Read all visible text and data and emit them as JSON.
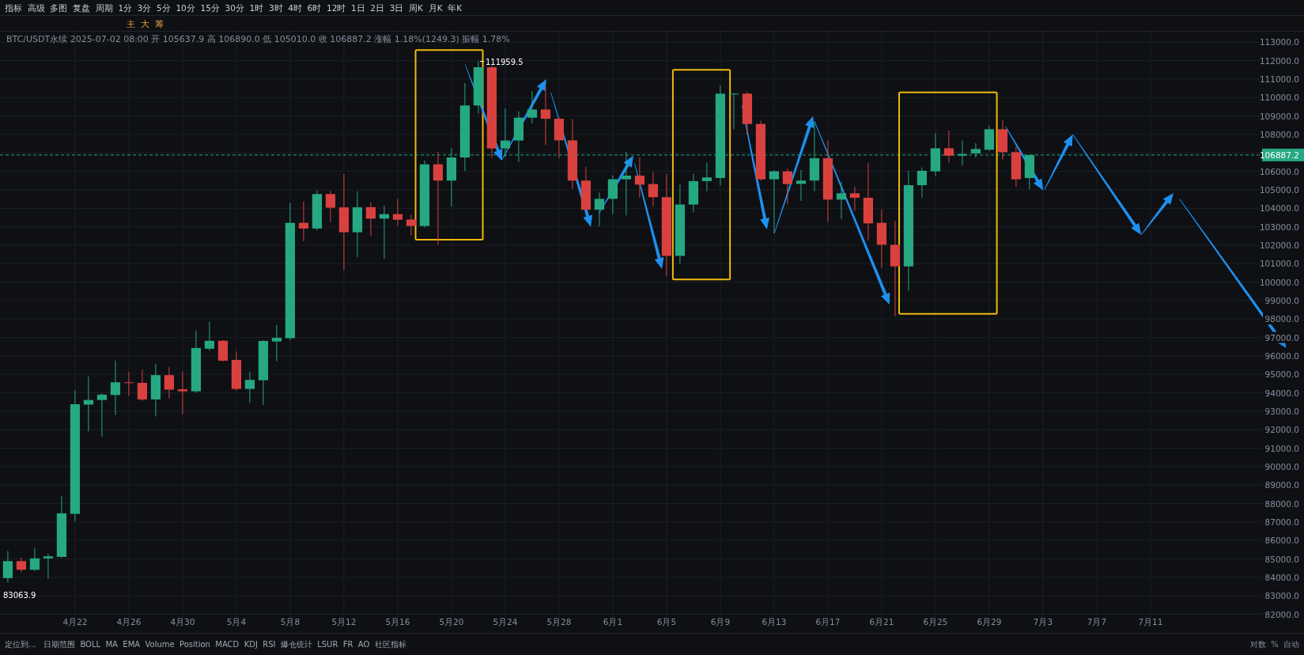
{
  "chart_data": {
    "type": "candlestick",
    "title": "BTC/USDT永续 2025-07-02 08:00 开 105637.9 高 106890.0 低 105010.0 收 106887.2 涨幅 1.18%(1249.3) 振幅 1.78%",
    "x": [
      "2025-04-17",
      "2025-04-18",
      "2025-04-19",
      "2025-04-20",
      "2025-04-21",
      "2025-04-22",
      "2025-04-23",
      "2025-04-24",
      "2025-04-25",
      "2025-04-26",
      "2025-04-27",
      "2025-04-28",
      "2025-04-29",
      "2025-04-30",
      "2025-05-01",
      "2025-05-02",
      "2025-05-03",
      "2025-05-04",
      "2025-05-05",
      "2025-05-06",
      "2025-05-07",
      "2025-05-08",
      "2025-05-09",
      "2025-05-10",
      "2025-05-11",
      "2025-05-12",
      "2025-05-13",
      "2025-05-14",
      "2025-05-15",
      "2025-05-16",
      "2025-05-17",
      "2025-05-18",
      "2025-05-19",
      "2025-05-20",
      "2025-05-21",
      "2025-05-22",
      "2025-05-23",
      "2025-05-24",
      "2025-05-25",
      "2025-05-26",
      "2025-05-27",
      "2025-05-28",
      "2025-05-29",
      "2025-05-30",
      "2025-05-31",
      "2025-06-01",
      "2025-06-02",
      "2025-06-03",
      "2025-06-04",
      "2025-06-05",
      "2025-06-06",
      "2025-06-07",
      "2025-06-08",
      "2025-06-09",
      "2025-06-10",
      "2025-06-11",
      "2025-06-12",
      "2025-06-13",
      "2025-06-14",
      "2025-06-15",
      "2025-06-16",
      "2025-06-17",
      "2025-06-18",
      "2025-06-19",
      "2025-06-20",
      "2025-06-21",
      "2025-06-22",
      "2025-06-23",
      "2025-06-24",
      "2025-06-25",
      "2025-06-26",
      "2025-06-27",
      "2025-06-28",
      "2025-06-29",
      "2025-06-30",
      "2025-07-01",
      "2025-07-02"
    ],
    "ohlc": [
      [
        83960,
        85430,
        83720,
        84880
      ],
      [
        84880,
        85070,
        84270,
        84410
      ],
      [
        84410,
        85590,
        84330,
        85030
      ],
      [
        85030,
        85280,
        83920,
        85140
      ],
      [
        85110,
        88400,
        85050,
        87470
      ],
      [
        87440,
        94130,
        87020,
        93380
      ],
      [
        93360,
        94890,
        91910,
        93610
      ],
      [
        93610,
        93980,
        91620,
        93900
      ],
      [
        93880,
        95750,
        92800,
        94570
      ],
      [
        94570,
        95140,
        93820,
        94530
      ],
      [
        94540,
        95260,
        93550,
        93640
      ],
      [
        93640,
        95570,
        92720,
        94960
      ],
      [
        94960,
        95400,
        93690,
        94170
      ],
      [
        94190,
        95170,
        92840,
        94080
      ],
      [
        94080,
        97370,
        94000,
        96430
      ],
      [
        96390,
        97850,
        96290,
        96820
      ],
      [
        96820,
        96850,
        95690,
        95740
      ],
      [
        95780,
        96240,
        94130,
        94210
      ],
      [
        94210,
        95150,
        93440,
        94700
      ],
      [
        94680,
        96850,
        93330,
        96810
      ],
      [
        96780,
        97680,
        95710,
        96980
      ],
      [
        96960,
        104280,
        96850,
        103210
      ],
      [
        103210,
        104360,
        102210,
        102900
      ],
      [
        102900,
        104970,
        102790,
        104770
      ],
      [
        104770,
        104940,
        103250,
        104030
      ],
      [
        104050,
        105860,
        100650,
        102700
      ],
      [
        102700,
        104920,
        101370,
        104050
      ],
      [
        104060,
        104310,
        102520,
        103440
      ],
      [
        103440,
        104140,
        101260,
        103680
      ],
      [
        103680,
        104510,
        103040,
        103380
      ],
      [
        103390,
        103650,
        102520,
        103040
      ],
      [
        103040,
        106590,
        102950,
        106380
      ],
      [
        106380,
        107070,
        102020,
        105500
      ],
      [
        105500,
        107250,
        104100,
        106750
      ],
      [
        106750,
        110780,
        106020,
        109570
      ],
      [
        109570,
        111959.5,
        109140,
        111640
      ],
      [
        111640,
        111740,
        106740,
        107240
      ],
      [
        107240,
        109400,
        106780,
        107670
      ],
      [
        107670,
        109250,
        106500,
        108910
      ],
      [
        108910,
        110350,
        108600,
        109350
      ],
      [
        109350,
        110570,
        107430,
        108850
      ],
      [
        108850,
        108900,
        106710,
        107680
      ],
      [
        107680,
        108850,
        105040,
        105500
      ],
      [
        105500,
        106240,
        103880,
        103920
      ],
      [
        103920,
        104850,
        103020,
        104510
      ],
      [
        104510,
        105780,
        103680,
        105570
      ],
      [
        105570,
        107070,
        103610,
        105770
      ],
      [
        105770,
        106750,
        104570,
        105280
      ],
      [
        105310,
        105950,
        104110,
        104600
      ],
      [
        104600,
        105850,
        100310,
        101420
      ],
      [
        101420,
        105280,
        100990,
        104200
      ],
      [
        104200,
        105850,
        103780,
        105470
      ],
      [
        105470,
        106470,
        104920,
        105670
      ],
      [
        105640,
        110640,
        105240,
        110210
      ],
      [
        110180,
        110240,
        108280,
        110210
      ],
      [
        110210,
        110310,
        108000,
        108570
      ],
      [
        108570,
        108740,
        105500,
        105570
      ],
      [
        105570,
        106070,
        102640,
        106000
      ],
      [
        106000,
        106140,
        104210,
        105310
      ],
      [
        105320,
        106070,
        104400,
        105500
      ],
      [
        105500,
        108710,
        104930,
        106710
      ],
      [
        106710,
        107680,
        103280,
        104470
      ],
      [
        104470,
        105430,
        103420,
        104810
      ],
      [
        104810,
        105170,
        103850,
        104570
      ],
      [
        104570,
        106450,
        102250,
        103180
      ],
      [
        103210,
        103930,
        100780,
        102020
      ],
      [
        102020,
        103320,
        98140,
        100850
      ],
      [
        100850,
        106030,
        99540,
        105250
      ],
      [
        105250,
        106210,
        104570,
        106030
      ],
      [
        106000,
        108070,
        105740,
        107250
      ],
      [
        107250,
        108210,
        106470,
        106850
      ],
      [
        106850,
        107670,
        106310,
        106940
      ],
      [
        106970,
        107530,
        106740,
        107210
      ],
      [
        107170,
        108470,
        107110,
        108280
      ],
      [
        108280,
        108780,
        106640,
        107040
      ],
      [
        107040,
        107350,
        105170,
        105570
      ],
      [
        105637.9,
        106890.0,
        105010.0,
        106887.2
      ]
    ],
    "colors": [
      "#26a882",
      "#d9413f",
      "#26a882",
      "#26a882",
      "#26a882",
      "#26a882",
      "#26a882",
      "#26a882",
      "#26a882",
      "#d9413f",
      "#d9413f",
      "#26a882",
      "#d9413f",
      "#d9413f",
      "#26a882",
      "#26a882",
      "#d9413f",
      "#d9413f",
      "#26a882",
      "#26a882",
      "#26a882",
      "#26a882",
      "#d9413f",
      "#26a882",
      "#d9413f",
      "#d9413f",
      "#26a882",
      "#d9413f",
      "#26a882",
      "#d9413f",
      "#d9413f",
      "#26a882",
      "#d9413f",
      "#26a882",
      "#26a882",
      "#26a882",
      "#d9413f",
      "#26a882",
      "#26a882",
      "#26a882",
      "#d9413f",
      "#d9413f",
      "#d9413f",
      "#d9413f",
      "#26a882",
      "#26a882",
      "#26a882",
      "#d9413f",
      "#d9413f",
      "#d9413f",
      "#26a882",
      "#26a882",
      "#26a882",
      "#26a882",
      "#26a882",
      "#d9413f",
      "#d9413f",
      "#26a882",
      "#d9413f",
      "#26a882",
      "#26a882",
      "#d9413f",
      "#26a882",
      "#d9413f",
      "#d9413f",
      "#d9413f",
      "#d9413f",
      "#26a882",
      "#26a882",
      "#26a882",
      "#d9413f",
      "#26a882",
      "#26a882",
      "#26a882",
      "#d9413f",
      "#d9413f",
      "#26a882"
    ],
    "xlim": [
      "2025-04-16T10:00",
      "2025-07-22T10:00"
    ],
    "xticks": [
      {
        "value": "2025-04-22",
        "label": "4月22"
      },
      {
        "value": "2025-04-26",
        "label": "4月26"
      },
      {
        "value": "2025-04-30",
        "label": "4月30"
      },
      {
        "value": "2025-05-04",
        "label": "5月4"
      },
      {
        "value": "2025-05-08",
        "label": "5月8"
      },
      {
        "value": "2025-05-12",
        "label": "5月12"
      },
      {
        "value": "2025-05-16",
        "label": "5月16"
      },
      {
        "value": "2025-05-20",
        "label": "5月20"
      },
      {
        "value": "2025-05-24",
        "label": "5月24"
      },
      {
        "value": "2025-05-28",
        "label": "5月28"
      },
      {
        "value": "2025-06-01",
        "label": "6月1"
      },
      {
        "value": "2025-06-05",
        "label": "6月5"
      },
      {
        "value": "2025-06-09",
        "label": "6月9"
      },
      {
        "value": "2025-06-13",
        "label": "6月13"
      },
      {
        "value": "2025-06-17",
        "label": "6月17"
      },
      {
        "value": "2025-06-21",
        "label": "6月21"
      },
      {
        "value": "2025-06-25",
        "label": "6月25"
      },
      {
        "value": "2025-06-29",
        "label": "6月29"
      },
      {
        "value": "2025-07-03",
        "label": "7月3"
      },
      {
        "value": "2025-07-07",
        "label": "7月7"
      },
      {
        "value": "2025-07-11",
        "label": "7月11"
      }
    ],
    "ylim": [
      81850,
      113570
    ],
    "yticks": [
      {
        "value": 82000,
        "label": "82000.0"
      },
      {
        "value": 83000,
        "label": "83000.0"
      },
      {
        "value": 84000,
        "label": "84000.0"
      },
      {
        "value": 85000,
        "label": "85000.0"
      },
      {
        "value": 86000,
        "label": "86000.0"
      },
      {
        "value": 87000,
        "label": "87000.0"
      },
      {
        "value": 88000,
        "label": "88000.0"
      },
      {
        "value": 89000,
        "label": "89000.0"
      },
      {
        "value": 90000,
        "label": "90000.0"
      },
      {
        "value": 91000,
        "label": "91000.0"
      },
      {
        "value": 92000,
        "label": "92000.0"
      },
      {
        "value": 93000,
        "label": "93000.0"
      },
      {
        "value": 94000,
        "label": "94000.0"
      },
      {
        "value": 95000,
        "label": "95000.0"
      },
      {
        "value": 96000,
        "label": "96000.0"
      },
      {
        "value": 97000,
        "label": "97000.0"
      },
      {
        "value": 98000,
        "label": "98000.0"
      },
      {
        "value": 99000,
        "label": "99000.0"
      },
      {
        "value": 100000,
        "label": "100000.0"
      },
      {
        "value": 101000,
        "label": "101000.0"
      },
      {
        "value": 102000,
        "label": "102000.0"
      },
      {
        "value": 103000,
        "label": "103000.0"
      },
      {
        "value": 104000,
        "label": "104000.0"
      },
      {
        "value": 105000,
        "label": "105000.0"
      },
      {
        "value": 106000,
        "label": "106000.0"
      },
      {
        "value": 107000,
        "label": null
      },
      {
        "value": 108000,
        "label": "108000.0"
      },
      {
        "value": 109000,
        "label": "109000.0"
      },
      {
        "value": 110000,
        "label": "110000.0"
      },
      {
        "value": 111000,
        "label": "111000.0"
      },
      {
        "value": 112000,
        "label": "112000.0"
      },
      {
        "value": 113000,
        "label": "113000.0"
      }
    ],
    "grid": true,
    "ref_lines": [
      {
        "axis": "y",
        "value": 106887.2,
        "label": "106887.2",
        "color": "#26a882",
        "line_style": "dashed"
      }
    ],
    "annotations": [
      "指标  高级  多图  复盘  周期  1分  3分  5分  10分  15分  30分  1时  3时  4时  6时  12时  1日  2日  3日  周K  月K  年K",
      "主  大  筹",
      "定位到...   日期范围  BOLL  MA  EMA  Volume  Position  MACD  KDJ  RSI  爆仓统计  LSUR  FR  AO  社区指标",
      "对数  %  自动",
      {
        "text": "111959.5",
        "x": "2025-05-22",
        "y": 111959.5
      },
      "83063.9"
    ]
  }
}
